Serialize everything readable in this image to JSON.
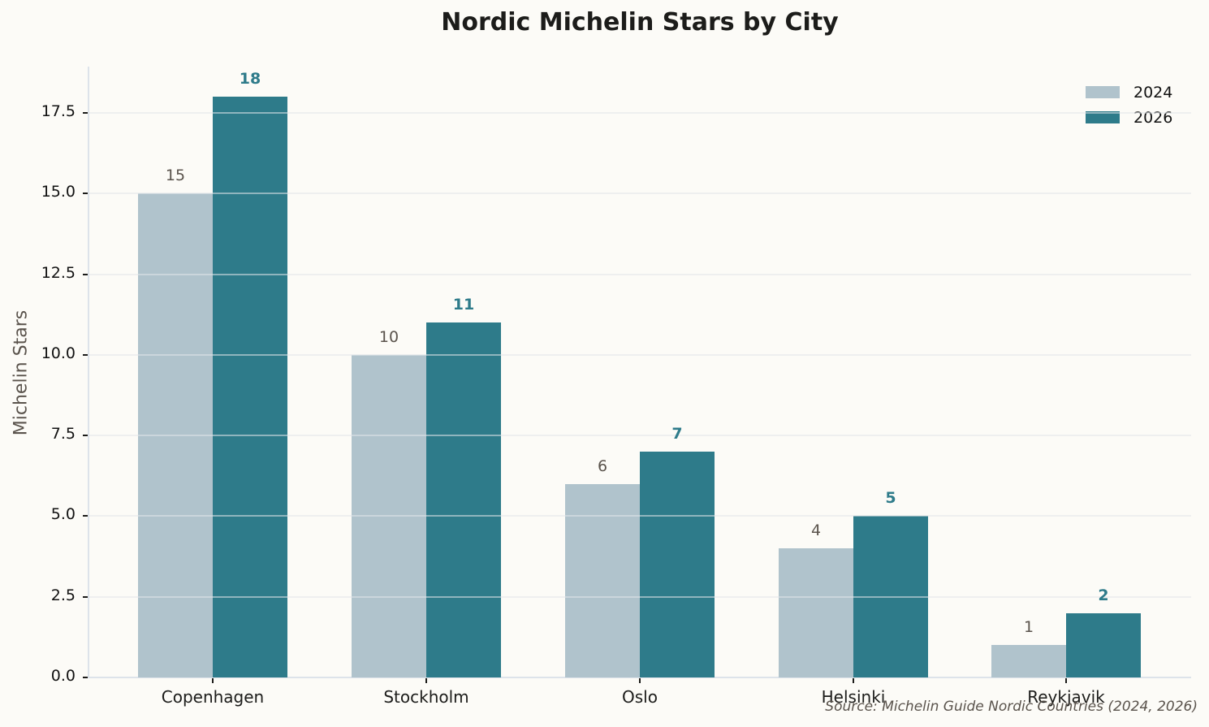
{
  "chart_data": {
    "type": "bar",
    "title": "Nordic Michelin Stars by City",
    "xlabel": "",
    "ylabel": "Michelin Stars",
    "categories": [
      "Copenhagen",
      "Stockholm",
      "Oslo",
      "Helsinki",
      "Reykjavik"
    ],
    "series": [
      {
        "name": "2024",
        "values": [
          15,
          10,
          6,
          4,
          1
        ],
        "color": "#b0c3cc"
      },
      {
        "name": "2026",
        "values": [
          18,
          11,
          7,
          5,
          2
        ],
        "color": "#2e7b8a"
      }
    ],
    "ylim": [
      0,
      18.9
    ],
    "yticks": [
      0.0,
      2.5,
      5.0,
      7.5,
      10.0,
      12.5,
      15.0,
      17.5
    ],
    "ytick_labels": [
      "0.0",
      "2.5",
      "5.0",
      "7.5",
      "10.0",
      "12.5",
      "15.0",
      "17.5"
    ],
    "grid": "horizontal",
    "legend_position": "upper right",
    "annotation": "Source: Michelin Guide Nordic Countries (2024, 2026)"
  },
  "title": "Nordic Michelin Stars by City",
  "ylabel": "Michelin Stars",
  "legend": [
    {
      "label": "2024",
      "color": "#b0c3cc"
    },
    {
      "label": "2026",
      "color": "#2e7b8a"
    }
  ],
  "source": "Source: Michelin Guide Nordic Countries (2024, 2026)"
}
